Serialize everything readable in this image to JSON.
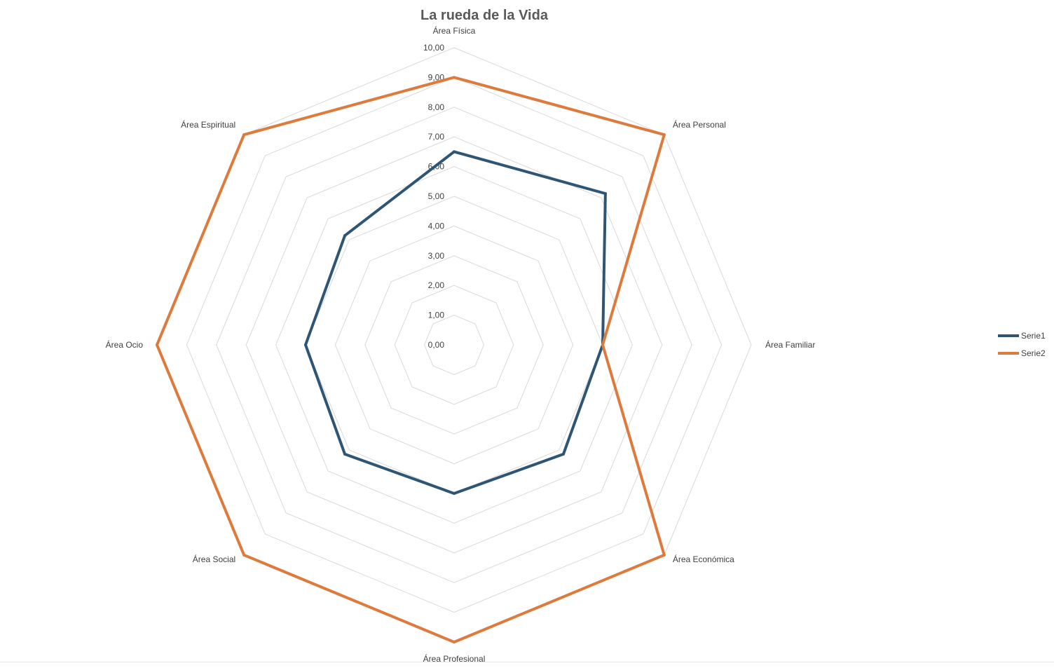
{
  "chart_data": {
    "type": "radar",
    "title": "La rueda de la Vida",
    "categories": [
      "Área Física",
      "Área Personal",
      "Área Familiar",
      "Área Económica",
      "Área Profesional",
      "Área Social",
      "Área Ocio",
      "Área Espiritual"
    ],
    "rlim": [
      0,
      10
    ],
    "tick_labels": [
      "0,00",
      "1,00",
      "2,00",
      "3,00",
      "4,00",
      "5,00",
      "6,00",
      "7,00",
      "8,00",
      "9,00",
      "10,00"
    ],
    "grid": true,
    "legend_position": "right",
    "series": [
      {
        "name": "Serie1",
        "color": "#2f5575",
        "values": [
          6.5,
          7.2,
          5.0,
          5.2,
          5.0,
          5.2,
          5.0,
          5.2
        ]
      },
      {
        "name": "Serie2",
        "color": "#dd7a3c",
        "values": [
          9.0,
          10.0,
          5.0,
          10.0,
          10.0,
          10.0,
          10.0,
          10.0
        ]
      }
    ]
  }
}
